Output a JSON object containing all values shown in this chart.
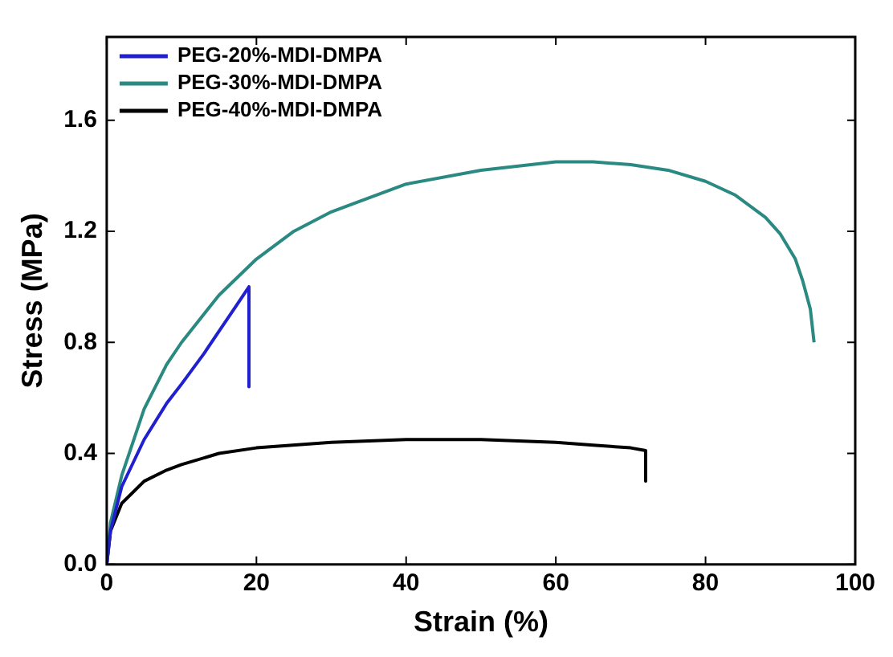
{
  "chart_data": {
    "type": "line",
    "xlabel": "Strain (%)",
    "ylabel": "Stress (MPa)",
    "xlim": [
      0,
      100
    ],
    "xticks": [
      0,
      20,
      40,
      60,
      80,
      100
    ],
    "ylim": [
      0,
      1.9
    ],
    "yticks": [
      {
        "value": 0,
        "label": "0.0"
      },
      {
        "value": 0.4,
        "label": "0.4"
      },
      {
        "value": 0.8,
        "label": "0.8"
      },
      {
        "value": 1.2,
        "label": "1.2"
      },
      {
        "value": 1.6,
        "label": "1.6"
      }
    ],
    "grid": false,
    "legend": "top left",
    "marker": "none",
    "line_style": "solid",
    "series": [
      {
        "name": "PEG-20%-MDI-DMPA",
        "color": "#2020d0",
        "x": [
          0,
          0.5,
          2,
          5,
          8,
          10,
          13,
          15,
          17,
          19,
          19
        ],
        "values": [
          0,
          0.12,
          0.28,
          0.45,
          0.58,
          0.65,
          0.76,
          0.84,
          0.92,
          1.0,
          0.64
        ]
      },
      {
        "name": "PEG-30%-MDI-DMPA",
        "color": "#2a8a82",
        "x": [
          0,
          0.5,
          2,
          5,
          8,
          10,
          15,
          20,
          25,
          30,
          40,
          50,
          60,
          65,
          70,
          75,
          80,
          84,
          88,
          90,
          92,
          93,
          94,
          94.5
        ],
        "values": [
          0,
          0.15,
          0.32,
          0.56,
          0.72,
          0.8,
          0.97,
          1.1,
          1.2,
          1.27,
          1.37,
          1.42,
          1.45,
          1.45,
          1.44,
          1.42,
          1.38,
          1.33,
          1.25,
          1.19,
          1.1,
          1.02,
          0.92,
          0.8
        ]
      },
      {
        "name": "PEG-40%-MDI-DMPA",
        "color": "#000000",
        "x": [
          0,
          0.5,
          2,
          5,
          8,
          10,
          15,
          20,
          30,
          40,
          50,
          60,
          65,
          70,
          72,
          72
        ],
        "values": [
          0,
          0.12,
          0.22,
          0.3,
          0.34,
          0.36,
          0.4,
          0.42,
          0.44,
          0.45,
          0.45,
          0.44,
          0.43,
          0.42,
          0.41,
          0.3
        ]
      }
    ]
  }
}
